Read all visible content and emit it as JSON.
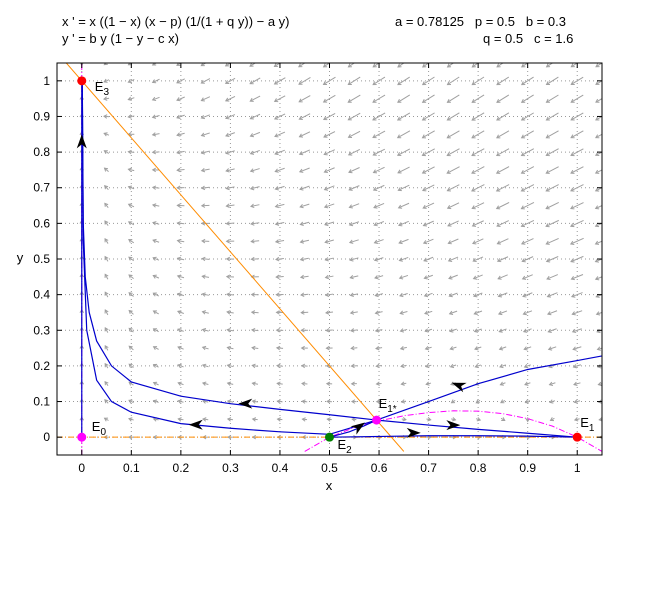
{
  "header": {
    "eq1": "x ' = x ((1 − x) (x − p) (1/(1 + q y)) − a y)",
    "eq2": "y ' = b y (1 − y − c x)",
    "params_row1": "a = 0.78125   p = 0.5   b = 0.3",
    "params_row2": "q = 0.5   c = 1.6"
  },
  "chart_data": {
    "type": "phase-portrait",
    "xlabel": "x",
    "ylabel": "y",
    "xlim": [
      -0.05,
      1.05
    ],
    "ylim": [
      -0.05,
      1.05
    ],
    "xticks": [
      0,
      0.1,
      0.2,
      0.3,
      0.4,
      0.5,
      0.6,
      0.7,
      0.8,
      0.9,
      1
    ],
    "yticks": [
      0,
      0.1,
      0.2,
      0.3,
      0.4,
      0.5,
      0.6,
      0.7,
      0.8,
      0.9,
      1
    ],
    "xtick_labels": [
      "0",
      "0.1",
      "0.2",
      "0.3",
      "0.4",
      "0.5",
      "0.6",
      "0.7",
      "0.8",
      "0.9",
      "1"
    ],
    "ytick_labels": [
      "0",
      "0.1",
      "0.2",
      "0.3",
      "0.4",
      "0.5",
      "0.6",
      "0.7",
      "0.8",
      "0.9",
      "1"
    ],
    "grid": true,
    "parameters": {
      "a": 0.78125,
      "p": 0.5,
      "b": 0.3,
      "q": 0.5,
      "c": 1.6
    },
    "equilibria": [
      {
        "name": "E",
        "sub": "0",
        "x": 0,
        "y": 0,
        "color": "#ff00ff"
      },
      {
        "name": "E",
        "sub": "1",
        "x": 1,
        "y": 0,
        "color": "#ff0000"
      },
      {
        "name": "E",
        "sub": "2",
        "x": 0.5,
        "y": 0,
        "color": "#008000"
      },
      {
        "name": "E",
        "sub": "3",
        "x": 0,
        "y": 1,
        "color": "#ff0000"
      },
      {
        "name": "E",
        "sub": "1*",
        "x": 0.595,
        "y": 0.048,
        "color": "#ff00ff"
      }
    ],
    "nullclines": [
      {
        "name": "y-nullcline",
        "color": "#ff8c00",
        "x": [
          -0.05,
          0.65
        ],
        "y": [
          1.08,
          -0.04
        ]
      },
      {
        "name": "x-nullcline",
        "color": "#ff00ff",
        "x": [
          0.45,
          0.5,
          0.55,
          0.6,
          0.65,
          0.7,
          0.75,
          0.8,
          0.85,
          0.9,
          0.95,
          1.0,
          1.05
        ],
        "y": [
          -0.04,
          0.0,
          0.027,
          0.046,
          0.06,
          0.069,
          0.074,
          0.073,
          0.066,
          0.052,
          0.031,
          0.0,
          -0.04
        ]
      },
      {
        "name": "x-axis-invariant",
        "color": "#ff8c00",
        "x": [
          -0.05,
          1.05
        ],
        "y": [
          0,
          0
        ]
      },
      {
        "name": "y-axis-invariant",
        "color": "#ff00ff",
        "x": [
          0,
          0
        ],
        "y": [
          -0.05,
          1.05
        ]
      }
    ],
    "trajectories": [
      {
        "color": "#0000cd",
        "x": [
          0,
          0,
          0
        ],
        "y": [
          0,
          0.55,
          1
        ]
      },
      {
        "color": "#0000cd",
        "x": [
          0.001,
          0.003,
          0.007,
          0.015,
          0.03,
          0.06,
          0.1,
          0.2,
          0.3,
          0.4,
          0.5,
          0.595
        ],
        "y": [
          1.0,
          0.6,
          0.45,
          0.35,
          0.27,
          0.2,
          0.155,
          0.115,
          0.094,
          0.078,
          0.063,
          0.048
        ]
      },
      {
        "color": "#0000cd",
        "x": [
          0.001,
          0.003,
          0.01,
          0.03,
          0.06,
          0.1,
          0.2,
          0.3,
          0.4,
          0.5,
          0.595
        ],
        "y": [
          1.0,
          0.55,
          0.3,
          0.16,
          0.1,
          0.07,
          0.038,
          0.025,
          0.015,
          0.008,
          0.048
        ]
      },
      {
        "color": "#0000cd",
        "x": [
          0.5,
          0.54,
          0.57,
          0.595
        ],
        "y": [
          0.0,
          0.015,
          0.032,
          0.048
        ]
      },
      {
        "color": "#0000cd",
        "x": [
          0.595,
          0.7,
          0.8,
          0.9,
          1.0
        ],
        "y": [
          0.048,
          0.034,
          0.022,
          0.011,
          0.0
        ]
      },
      {
        "color": "#0000cd",
        "x": [
          0.5,
          0.6,
          0.7,
          0.8,
          0.9,
          1.0
        ],
        "y": [
          0.0,
          0.002,
          0.004,
          0.004,
          0.003,
          0.0
        ]
      },
      {
        "color": "#0000cd",
        "x": [
          0.595,
          0.7,
          0.8,
          0.9,
          1.0,
          1.05
        ],
        "y": [
          0.048,
          0.1,
          0.15,
          0.19,
          0.215,
          0.228
        ]
      }
    ],
    "arrows": [
      {
        "x": 0,
        "y": 0.83,
        "dir": "up"
      },
      {
        "x": 0.33,
        "y": 0.094,
        "dir": "left"
      },
      {
        "x": 0.23,
        "y": 0.035,
        "dir": "left"
      },
      {
        "x": 0.76,
        "y": 0.146,
        "dir": "left-down"
      },
      {
        "x": 0.56,
        "y": 0.03,
        "dir": "right-up"
      },
      {
        "x": 0.67,
        "y": 0.012,
        "dir": "right"
      },
      {
        "x": 0.75,
        "y": 0.034,
        "dir": "right"
      }
    ]
  }
}
